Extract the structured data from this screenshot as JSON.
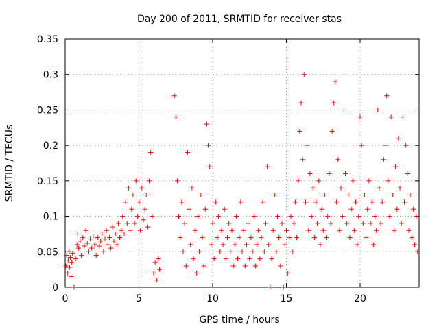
{
  "chart_data": {
    "type": "scatter",
    "title": "Day 200 of 2011, SRMTID for receiver stas",
    "xlabel": "GPS time / hours",
    "ylabel": "SRMTID / TECUs",
    "xlim": [
      0,
      24
    ],
    "ylim": [
      0,
      0.35
    ],
    "xticks": [
      0,
      5,
      10,
      15,
      20
    ],
    "yticks": [
      0,
      0.05,
      0.1,
      0.15,
      0.2,
      0.25,
      0.3,
      0.35
    ],
    "xtick_labels": [
      "0",
      "5",
      "10",
      "15",
      "20"
    ],
    "ytick_labels": [
      "0",
      "0.05",
      "0.1",
      "0.15",
      "0.2",
      "0.25",
      "0.3",
      "0.35"
    ],
    "grid": true,
    "marker": "+",
    "color": "#ff0000",
    "series": [
      {
        "name": "SRMTID",
        "points": [
          [
            0.05,
            0.03
          ],
          [
            0.1,
            0.045
          ],
          [
            0.15,
            0.02
          ],
          [
            0.2,
            0.038
          ],
          [
            0.25,
            0.05
          ],
          [
            0.3,
            0.028
          ],
          [
            0.35,
            0.042
          ],
          [
            0.4,
            0.015
          ],
          [
            0.45,
            0.035
          ],
          [
            0.5,
            0.048
          ],
          [
            0.6,
            0.0
          ],
          [
            0.7,
            0.04
          ],
          [
            0.8,
            0.06
          ],
          [
            0.85,
            0.075
          ],
          [
            0.9,
            0.055
          ],
          [
            1.0,
            0.065
          ],
          [
            1.1,
            0.045
          ],
          [
            1.2,
            0.07
          ],
          [
            1.3,
            0.058
          ],
          [
            1.4,
            0.08
          ],
          [
            1.5,
            0.062
          ],
          [
            1.6,
            0.05
          ],
          [
            1.7,
            0.068
          ],
          [
            1.8,
            0.055
          ],
          [
            1.9,
            0.072
          ],
          [
            2.0,
            0.06
          ],
          [
            2.1,
            0.045
          ],
          [
            2.2,
            0.07
          ],
          [
            2.3,
            0.058
          ],
          [
            2.4,
            0.065
          ],
          [
            2.5,
            0.075
          ],
          [
            2.6,
            0.05
          ],
          [
            2.7,
            0.068
          ],
          [
            2.8,
            0.08
          ],
          [
            2.9,
            0.06
          ],
          [
            3.0,
            0.07
          ],
          [
            3.1,
            0.055
          ],
          [
            3.2,
            0.085
          ],
          [
            3.3,
            0.065
          ],
          [
            3.4,
            0.075
          ],
          [
            3.5,
            0.06
          ],
          [
            3.6,
            0.09
          ],
          [
            3.7,
            0.07
          ],
          [
            3.8,
            0.08
          ],
          [
            3.9,
            0.1
          ],
          [
            4.0,
            0.075
          ],
          [
            4.1,
            0.12
          ],
          [
            4.2,
            0.09
          ],
          [
            4.3,
            0.14
          ],
          [
            4.4,
            0.08
          ],
          [
            4.5,
            0.11
          ],
          [
            4.6,
            0.13
          ],
          [
            4.7,
            0.09
          ],
          [
            4.8,
            0.15
          ],
          [
            4.9,
            0.1
          ],
          [
            5.0,
            0.12
          ],
          [
            5.1,
            0.08
          ],
          [
            5.2,
            0.14
          ],
          [
            5.3,
            0.095
          ],
          [
            5.4,
            0.11
          ],
          [
            5.5,
            0.13
          ],
          [
            5.6,
            0.085
          ],
          [
            5.7,
            0.15
          ],
          [
            5.8,
            0.19
          ],
          [
            5.9,
            0.1
          ],
          [
            6.0,
            0.02
          ],
          [
            6.1,
            0.035
          ],
          [
            6.2,
            0.01
          ],
          [
            6.3,
            0.04
          ],
          [
            6.4,
            0.025
          ],
          [
            7.4,
            0.27
          ],
          [
            7.5,
            0.24
          ],
          [
            7.6,
            0.15
          ],
          [
            7.7,
            0.1
          ],
          [
            7.8,
            0.07
          ],
          [
            7.9,
            0.12
          ],
          [
            8.0,
            0.05
          ],
          [
            8.1,
            0.09
          ],
          [
            8.2,
            0.03
          ],
          [
            8.3,
            0.19
          ],
          [
            8.4,
            0.11
          ],
          [
            8.5,
            0.06
          ],
          [
            8.6,
            0.14
          ],
          [
            8.7,
            0.04
          ],
          [
            8.8,
            0.08
          ],
          [
            8.9,
            0.02
          ],
          [
            9.0,
            0.1
          ],
          [
            9.1,
            0.05
          ],
          [
            9.2,
            0.13
          ],
          [
            9.3,
            0.07
          ],
          [
            9.4,
            0.03
          ],
          [
            9.5,
            0.11
          ],
          [
            9.6,
            0.23
          ],
          [
            9.7,
            0.2
          ],
          [
            9.8,
            0.17
          ],
          [
            9.9,
            0.06
          ],
          [
            10.0,
            0.09
          ],
          [
            10.1,
            0.04
          ],
          [
            10.2,
            0.12
          ],
          [
            10.3,
            0.07
          ],
          [
            10.4,
            0.1
          ],
          [
            10.5,
            0.05
          ],
          [
            10.6,
            0.08
          ],
          [
            10.7,
            0.06
          ],
          [
            10.8,
            0.11
          ],
          [
            10.9,
            0.04
          ],
          [
            11.0,
            0.07
          ],
          [
            11.1,
            0.09
          ],
          [
            11.2,
            0.05
          ],
          [
            11.3,
            0.08
          ],
          [
            11.4,
            0.03
          ],
          [
            11.5,
            0.06
          ],
          [
            11.6,
            0.1
          ],
          [
            11.7,
            0.04
          ],
          [
            11.8,
            0.07
          ],
          [
            11.9,
            0.12
          ],
          [
            12.0,
            0.05
          ],
          [
            12.1,
            0.08
          ],
          [
            12.2,
            0.03
          ],
          [
            12.3,
            0.06
          ],
          [
            12.4,
            0.09
          ],
          [
            12.5,
            0.04
          ],
          [
            12.6,
            0.07
          ],
          [
            12.7,
            0.05
          ],
          [
            12.8,
            0.1
          ],
          [
            12.9,
            0.03
          ],
          [
            13.0,
            0.06
          ],
          [
            13.1,
            0.08
          ],
          [
            13.2,
            0.04
          ],
          [
            13.3,
            0.07
          ],
          [
            13.4,
            0.12
          ],
          [
            13.5,
            0.05
          ],
          [
            13.6,
            0.09
          ],
          [
            13.7,
            0.17
          ],
          [
            13.8,
            0.06
          ],
          [
            13.9,
            0.0
          ],
          [
            14.0,
            0.04
          ],
          [
            14.1,
            0.08
          ],
          [
            14.2,
            0.13
          ],
          [
            14.3,
            0.05
          ],
          [
            14.4,
            0.1
          ],
          [
            14.5,
            0.07
          ],
          [
            14.6,
            0.03
          ],
          [
            14.7,
            0.09
          ],
          [
            14.8,
            0.0
          ],
          [
            14.9,
            0.06
          ],
          [
            15.0,
            0.08
          ],
          [
            15.1,
            0.02
          ],
          [
            15.2,
            0.07
          ],
          [
            15.3,
            0.1
          ],
          [
            15.4,
            0.05
          ],
          [
            15.5,
            0.09
          ],
          [
            15.6,
            0.12
          ],
          [
            15.7,
            0.07
          ],
          [
            15.8,
            0.15
          ],
          [
            15.9,
            0.22
          ],
          [
            16.0,
            0.26
          ],
          [
            16.1,
            0.18
          ],
          [
            16.2,
            0.3
          ],
          [
            16.3,
            0.12
          ],
          [
            16.4,
            0.2
          ],
          [
            16.5,
            0.08
          ],
          [
            16.6,
            0.16
          ],
          [
            16.7,
            0.1
          ],
          [
            16.8,
            0.14
          ],
          [
            16.9,
            0.07
          ],
          [
            17.0,
            0.12
          ],
          [
            17.1,
            0.09
          ],
          [
            17.2,
            0.15
          ],
          [
            17.3,
            0.06
          ],
          [
            17.4,
            0.11
          ],
          [
            17.5,
            0.08
          ],
          [
            17.6,
            0.13
          ],
          [
            17.7,
            0.07
          ],
          [
            17.8,
            0.1
          ],
          [
            17.9,
            0.16
          ],
          [
            18.0,
            0.09
          ],
          [
            18.1,
            0.22
          ],
          [
            18.2,
            0.26
          ],
          [
            18.3,
            0.29
          ],
          [
            18.4,
            0.12
          ],
          [
            18.5,
            0.18
          ],
          [
            18.6,
            0.08
          ],
          [
            18.7,
            0.14
          ],
          [
            18.8,
            0.1
          ],
          [
            18.9,
            0.25
          ],
          [
            19.0,
            0.16
          ],
          [
            19.1,
            0.09
          ],
          [
            19.2,
            0.13
          ],
          [
            19.3,
            0.07
          ],
          [
            19.4,
            0.11
          ],
          [
            19.5,
            0.15
          ],
          [
            19.6,
            0.08
          ],
          [
            19.7,
            0.12
          ],
          [
            19.8,
            0.06
          ],
          [
            19.9,
            0.1
          ],
          [
            20.0,
            0.24
          ],
          [
            20.1,
            0.2
          ],
          [
            20.2,
            0.09
          ],
          [
            20.3,
            0.13
          ],
          [
            20.4,
            0.07
          ],
          [
            20.5,
            0.11
          ],
          [
            20.6,
            0.15
          ],
          [
            20.7,
            0.09
          ],
          [
            20.8,
            0.12
          ],
          [
            20.9,
            0.06
          ],
          [
            21.0,
            0.1
          ],
          [
            21.1,
            0.08
          ],
          [
            21.2,
            0.25
          ],
          [
            21.3,
            0.14
          ],
          [
            21.4,
            0.09
          ],
          [
            21.5,
            0.12
          ],
          [
            21.6,
            0.18
          ],
          [
            21.7,
            0.2
          ],
          [
            21.8,
            0.27
          ],
          [
            21.9,
            0.15
          ],
          [
            22.0,
            0.1
          ],
          [
            22.1,
            0.24
          ],
          [
            22.2,
            0.13
          ],
          [
            22.3,
            0.08
          ],
          [
            22.4,
            0.17
          ],
          [
            22.5,
            0.11
          ],
          [
            22.6,
            0.21
          ],
          [
            22.7,
            0.14
          ],
          [
            22.8,
            0.09
          ],
          [
            22.9,
            0.24
          ],
          [
            23.0,
            0.12
          ],
          [
            23.1,
            0.2
          ],
          [
            23.2,
            0.16
          ],
          [
            23.3,
            0.08
          ],
          [
            23.4,
            0.13
          ],
          [
            23.5,
            0.07
          ],
          [
            23.6,
            0.11
          ],
          [
            23.7,
            0.06
          ],
          [
            23.8,
            0.1
          ],
          [
            23.9,
            0.05
          ]
        ]
      }
    ]
  }
}
